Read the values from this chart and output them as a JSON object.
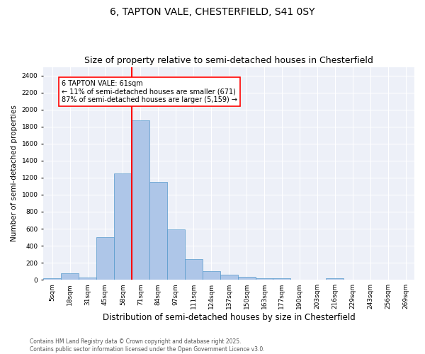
{
  "title": "6, TAPTON VALE, CHESTERFIELD, S41 0SY",
  "subtitle": "Size of property relative to semi-detached houses in Chesterfield",
  "xlabel": "Distribution of semi-detached houses by size in Chesterfield",
  "ylabel": "Number of semi-detached properties",
  "categories": [
    "5sqm",
    "18sqm",
    "31sqm",
    "45sqm",
    "58sqm",
    "71sqm",
    "84sqm",
    "97sqm",
    "111sqm",
    "124sqm",
    "137sqm",
    "150sqm",
    "163sqm",
    "177sqm",
    "190sqm",
    "203sqm",
    "216sqm",
    "229sqm",
    "243sqm",
    "256sqm",
    "269sqm"
  ],
  "values": [
    20,
    80,
    30,
    500,
    1250,
    1870,
    1150,
    590,
    240,
    105,
    60,
    35,
    20,
    15,
    0,
    0,
    15,
    0,
    0,
    0,
    0
  ],
  "bar_color": "#aec6e8",
  "bar_edge_color": "#5599cc",
  "vline_x_index": 4.5,
  "vline_color": "red",
  "annotation_text": "6 TAPTON VALE: 61sqm\n← 11% of semi-detached houses are smaller (671)\n87% of semi-detached houses are larger (5,159) →",
  "annotation_box_color": "white",
  "annotation_box_edge": "red",
  "ylim": [
    0,
    2500
  ],
  "yticks": [
    0,
    200,
    400,
    600,
    800,
    1000,
    1200,
    1400,
    1600,
    1800,
    2000,
    2200,
    2400
  ],
  "bg_color": "#edf0f8",
  "footer": "Contains HM Land Registry data © Crown copyright and database right 2025.\nContains public sector information licensed under the Open Government Licence v3.0.",
  "title_fontsize": 10,
  "subtitle_fontsize": 9,
  "xlabel_fontsize": 8.5,
  "ylabel_fontsize": 7.5,
  "tick_fontsize": 6.5,
  "footer_fontsize": 5.5,
  "annotation_fontsize": 7
}
